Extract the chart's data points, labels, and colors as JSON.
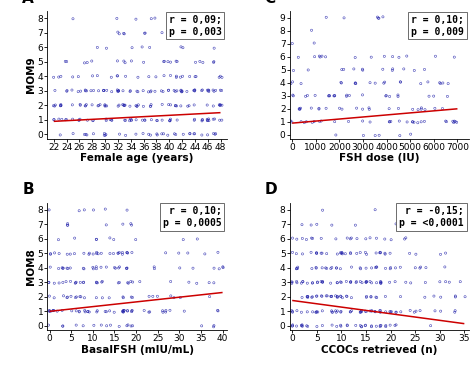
{
  "panels": [
    {
      "label": "A",
      "xlabel": "Female age (years)",
      "ylabel": "MOM9",
      "xlim": [
        21,
        49
      ],
      "ylim": [
        -0.3,
        8.5
      ],
      "xticks": [
        22,
        24,
        26,
        28,
        30,
        32,
        34,
        36,
        38,
        40,
        42,
        44,
        46,
        48
      ],
      "yticks": [
        0,
        1,
        2,
        3,
        4,
        5,
        6,
        7,
        8
      ],
      "annotation": "r = 0,09;\np = 0,003",
      "trend_x": [
        22,
        48
      ],
      "trend_y": [
        0.9,
        1.5
      ]
    },
    {
      "label": "C",
      "xlabel": "FSH dose (IU)",
      "ylabel": "",
      "xlim": [
        -100,
        7500
      ],
      "ylim": [
        -0.3,
        9.5
      ],
      "xticks": [
        0,
        1000,
        2000,
        3000,
        4000,
        5000,
        6000,
        7000
      ],
      "yticks": [
        0,
        1,
        2,
        3,
        4,
        5,
        6,
        7,
        8,
        9
      ],
      "annotation": "r = 0,10;\np = 0,009",
      "trend_x": [
        0,
        7000
      ],
      "trend_y": [
        0.9,
        2.0
      ]
    },
    {
      "label": "B",
      "xlabel": "BasalFSH (mIU/mL)",
      "ylabel": "MOM8",
      "xlim": [
        -0.5,
        41
      ],
      "ylim": [
        -0.3,
        8.5
      ],
      "xticks": [
        0,
        5,
        10,
        15,
        20,
        25,
        30,
        35,
        40
      ],
      "yticks": [
        0,
        1,
        2,
        3,
        4,
        5,
        6,
        7,
        8
      ],
      "annotation": "r = 0,10;\np = 0,0005",
      "trend_x": [
        0,
        40
      ],
      "trend_y": [
        1.0,
        2.3
      ]
    },
    {
      "label": "D",
      "xlabel": "CCOCs retrieved (n)",
      "ylabel": "",
      "xlim": [
        -0.5,
        36
      ],
      "ylim": [
        -0.3,
        8.5
      ],
      "xticks": [
        0,
        5,
        10,
        15,
        20,
        25,
        30,
        35
      ],
      "yticks": [
        0,
        1,
        2,
        3,
        4,
        5,
        6,
        7,
        8
      ],
      "annotation": "r = -0,15;\np = <0,0001",
      "trend_x": [
        0,
        35
      ],
      "trend_y": [
        1.75,
        0.15
      ]
    }
  ],
  "scatter_color": "#2222aa",
  "line_color": "#cc0000",
  "marker": "o",
  "marker_size": 2.5,
  "bg_color": "#ffffff",
  "panel_bg": "#ffffff",
  "label_fontsize": 7.5,
  "tick_fontsize": 6.5,
  "annot_fontsize": 7,
  "panel_label_fontsize": 11
}
